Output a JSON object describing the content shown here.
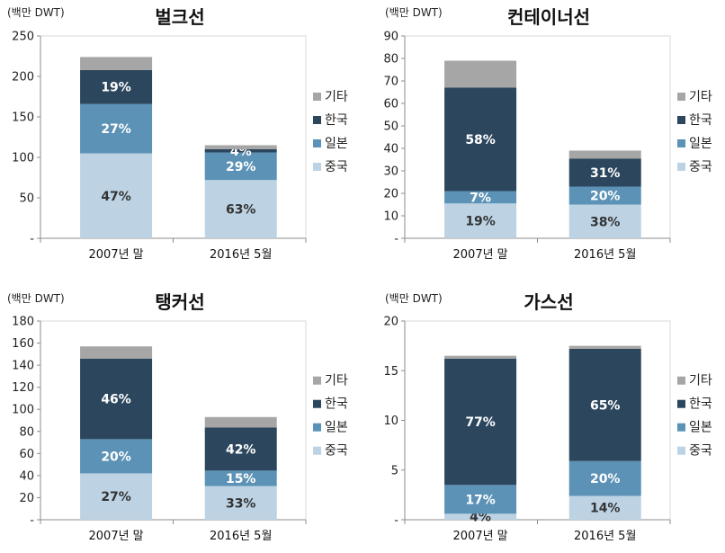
{
  "colors": {
    "china": "#bdd3e4",
    "japan": "#5b92b6",
    "korea": "#2c475d",
    "other": "#a6a6a6",
    "label_light": "#ffffff",
    "label_dark": "#333333"
  },
  "chart_data": [
    {
      "type": "bar",
      "stacked": true,
      "title": "벌크선",
      "unit": "(백만 DWT)",
      "categories": [
        "2007년 말",
        "2016년 5월"
      ],
      "ylim": [
        0,
        250
      ],
      "yticks": [
        "-",
        "50",
        "100",
        "150",
        "200",
        "250"
      ],
      "legend": [
        "기타",
        "한국",
        "일본",
        "중국"
      ],
      "legend_position": "right",
      "grid": false,
      "series": [
        {
          "name": "중국",
          "values": [
            105,
            72
          ],
          "labels": [
            "47%",
            "63%"
          ]
        },
        {
          "name": "일본",
          "values": [
            61,
            34
          ],
          "labels": [
            "27%",
            "29%"
          ]
        },
        {
          "name": "한국",
          "values": [
            42,
            4
          ],
          "labels": [
            "19%",
            "4%"
          ]
        },
        {
          "name": "기타",
          "values": [
            16,
            5
          ],
          "labels": [
            "",
            ""
          ]
        }
      ]
    },
    {
      "type": "bar",
      "stacked": true,
      "title": "컨테이너선",
      "unit": "(백만 DWT)",
      "categories": [
        "2007년 말",
        "2016년 5월"
      ],
      "ylim": [
        0,
        90
      ],
      "yticks": [
        "-",
        "10",
        "20",
        "30",
        "40",
        "50",
        "60",
        "70",
        "80",
        "90"
      ],
      "legend": [
        "기타",
        "한국",
        "일본",
        "중국"
      ],
      "legend_position": "right",
      "grid": false,
      "series": [
        {
          "name": "중국",
          "values": [
            15.5,
            15
          ],
          "labels": [
            "19%",
            "38%"
          ]
        },
        {
          "name": "일본",
          "values": [
            5.5,
            8
          ],
          "labels": [
            "7%",
            "20%"
          ]
        },
        {
          "name": "한국",
          "values": [
            46,
            12.5
          ],
          "labels": [
            "58%",
            "31%"
          ]
        },
        {
          "name": "기타",
          "values": [
            12,
            3.5
          ],
          "labels": [
            "",
            ""
          ]
        }
      ]
    },
    {
      "type": "bar",
      "stacked": true,
      "title": "탱커선",
      "unit": "(백만 DWT)",
      "categories": [
        "2007년 말",
        "2016년 5월"
      ],
      "ylim": [
        0,
        180
      ],
      "yticks": [
        "-",
        "20",
        "40",
        "60",
        "80",
        "100",
        "120",
        "140",
        "160",
        "180"
      ],
      "legend": [
        "기타",
        "한국",
        "일본",
        "중국"
      ],
      "legend_position": "right",
      "grid": false,
      "series": [
        {
          "name": "중국",
          "values": [
            42,
            30.5
          ],
          "labels": [
            "27%",
            "33%"
          ]
        },
        {
          "name": "일본",
          "values": [
            31,
            14
          ],
          "labels": [
            "20%",
            "15%"
          ]
        },
        {
          "name": "한국",
          "values": [
            73,
            39
          ],
          "labels": [
            "46%",
            "42%"
          ]
        },
        {
          "name": "기타",
          "values": [
            11,
            9.5
          ],
          "labels": [
            "",
            ""
          ]
        }
      ]
    },
    {
      "type": "bar",
      "stacked": true,
      "title": "가스선",
      "unit": "(백만 DWT)",
      "categories": [
        "2007년 말",
        "2016년 5월"
      ],
      "ylim": [
        0,
        20
      ],
      "yticks": [
        "-",
        "5",
        "10",
        "15",
        "20"
      ],
      "legend": [
        "기타",
        "한국",
        "일본",
        "중국"
      ],
      "legend_position": "right",
      "grid": false,
      "series": [
        {
          "name": "중국",
          "values": [
            0.6,
            2.4
          ],
          "labels": [
            "4%",
            "14%"
          ]
        },
        {
          "name": "일본",
          "values": [
            2.9,
            3.5
          ],
          "labels": [
            "17%",
            "20%"
          ]
        },
        {
          "name": "한국",
          "values": [
            12.7,
            11.3
          ],
          "labels": [
            "77%",
            "65%"
          ]
        },
        {
          "name": "기타",
          "values": [
            0.3,
            0.3
          ],
          "labels": [
            "",
            ""
          ]
        }
      ]
    }
  ]
}
